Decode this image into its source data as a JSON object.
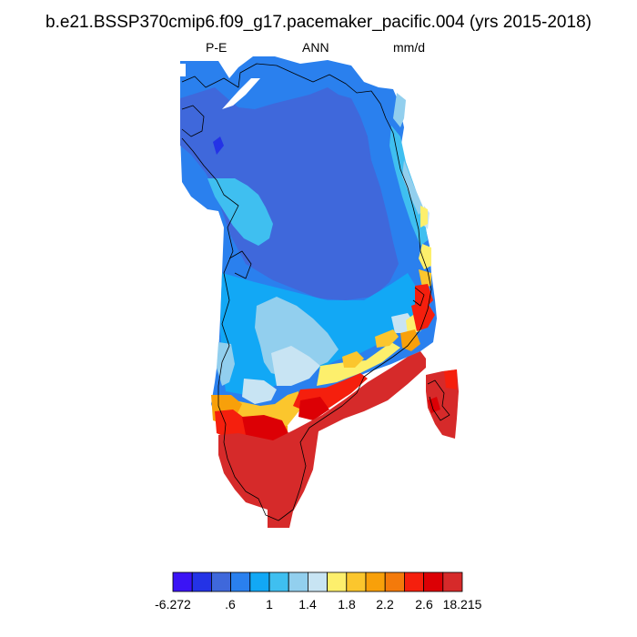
{
  "title": "b.e21.BSSP370cmip6.f09_g17.pacemaker_pacific.004 (yrs 2015-2018)",
  "subtitle_left": "P-E",
  "subtitle_center": "ANN",
  "subtitle_right": "mm/d",
  "colors": {
    "c0": "#3b14f5",
    "c1": "#2433e6",
    "c2": "#3f68db",
    "c3": "#2a80ee",
    "c4": "#12a8f5",
    "c5": "#3fbff0",
    "c6": "#92cfee",
    "c7": "#c8e4f3",
    "c8": "#fdef6c",
    "c9": "#fbc62d",
    "c10": "#f8a00a",
    "c11": "#f47a0b",
    "c12": "#f51f0d",
    "c13": "#dc0005",
    "c14": "#d62a2a",
    "land_outline": "#000000"
  },
  "colorbar": {
    "colors": [
      "#3b14f5",
      "#2433e6",
      "#3f68db",
      "#2a80ee",
      "#12a8f5",
      "#3fbff0",
      "#92cfee",
      "#c8e4f3",
      "#fdef6c",
      "#fbc62d",
      "#f8a00a",
      "#f47a0b",
      "#f51f0d",
      "#dc0005",
      "#d62a2a"
    ],
    "labels": [
      "-6.272",
      ".6",
      "1",
      "1.4",
      "1.8",
      "2.2",
      "2.6",
      "18.215"
    ]
  }
}
